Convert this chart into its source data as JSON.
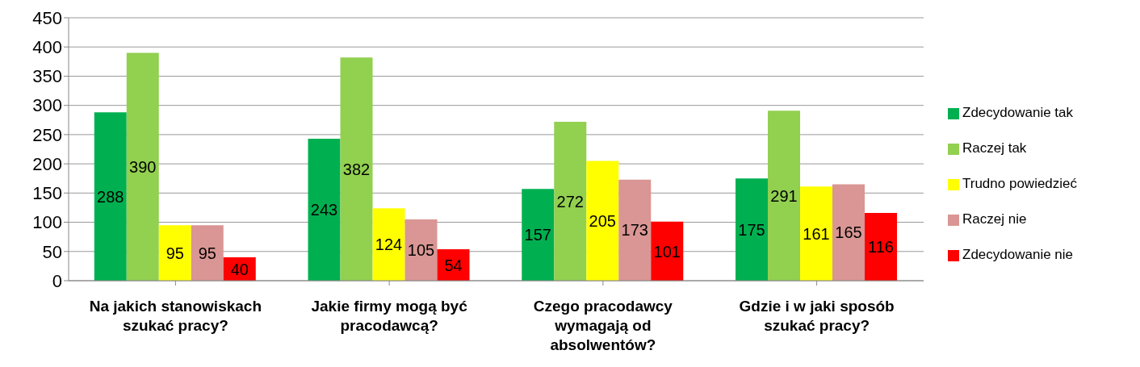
{
  "chart_data": {
    "type": "bar",
    "categories": [
      "Na jakich stanowiskach szukać pracy?",
      "Jakie firmy mogą być pracodawcą?",
      "Czego pracodawcy wymagają od absolwentów?",
      "Gdzie i w jaki sposób szukać pracy?"
    ],
    "series": [
      {
        "name": "Zdecydowanie tak",
        "color": "#00b050",
        "values": [
          288,
          243,
          157,
          175
        ]
      },
      {
        "name": "Raczej tak",
        "color": "#92d050",
        "values": [
          390,
          382,
          272,
          291
        ]
      },
      {
        "name": "Trudno powiedzieć",
        "color": "#ffff00",
        "values": [
          95,
          124,
          205,
          161
        ]
      },
      {
        "name": "Raczej nie",
        "color": "#d99694",
        "values": [
          95,
          105,
          173,
          165
        ]
      },
      {
        "name": "Zdecydowanie nie",
        "color": "#ff0000",
        "values": [
          40,
          54,
          101,
          116
        ]
      }
    ],
    "ylim": [
      0,
      450
    ],
    "yticks": [
      0,
      50,
      100,
      150,
      200,
      250,
      300,
      350,
      400,
      450
    ],
    "grid": "y",
    "legend": "right",
    "data_labels": true
  }
}
